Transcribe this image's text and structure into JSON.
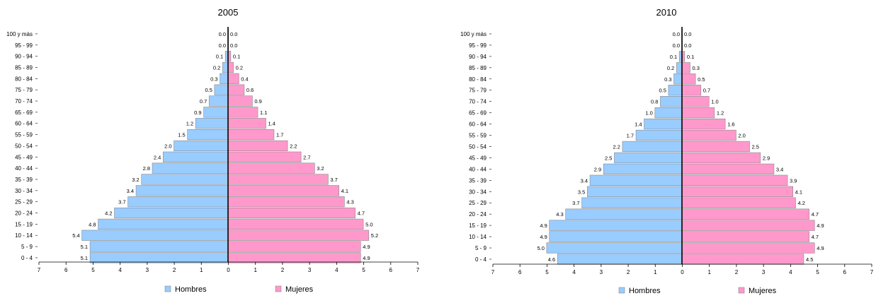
{
  "chart_data": [
    {
      "type": "bar",
      "orientation": "horizontal",
      "title": "2005",
      "categories": [
        "100 y más",
        "95 - 99",
        "90 - 94",
        "85 - 89",
        "80 - 84",
        "75 - 79",
        "70 - 74",
        "65 - 69",
        "60 - 64",
        "55 - 59",
        "50 - 54",
        "45 - 49",
        "40 - 44",
        "35 - 39",
        "30 - 34",
        "25 - 29",
        "20 - 24",
        "15 - 19",
        "10 - 14",
        "5 - 9",
        "0 - 4"
      ],
      "x_ticks": [
        "7",
        "6",
        "5",
        "4",
        "3",
        "2",
        "1",
        "0",
        "1",
        "2",
        "3",
        "4",
        "5",
        "6",
        "7"
      ],
      "xlim": [
        -7,
        7
      ],
      "grid": false,
      "legend_position": "bottom",
      "series": [
        {
          "name": "Hombres",
          "color": "#99ccff",
          "side": "left",
          "values": [
            0.0,
            0.0,
            0.1,
            0.2,
            0.3,
            0.5,
            0.7,
            0.9,
            1.2,
            1.5,
            2.0,
            2.4,
            2.8,
            3.2,
            3.4,
            3.7,
            4.2,
            4.8,
            5.4,
            5.1,
            5.1
          ],
          "labels": [
            "0.0",
            "0.0",
            "0.1",
            "0.2",
            "0.3",
            "0.5",
            "0.7",
            "0.9",
            "1.2",
            "1.5",
            "2.0",
            "2.4",
            "2.8",
            "3.2",
            "3.4",
            "3.7",
            "4.2",
            "4.8",
            "5.4",
            "5.1",
            "5.1"
          ]
        },
        {
          "name": "Mujeres",
          "color": "#ff99cc",
          "side": "right",
          "values": [
            0.0,
            0.0,
            0.1,
            0.2,
            0.4,
            0.6,
            0.9,
            1.1,
            1.4,
            1.7,
            2.2,
            2.7,
            3.2,
            3.7,
            4.1,
            4.3,
            4.7,
            5.0,
            5.2,
            4.9,
            4.9
          ],
          "labels": [
            "0.0",
            "0.0",
            "0.1",
            "0.2",
            "0.4",
            "0.6",
            "0.9",
            "1.1",
            "1.4",
            "1.7",
            "2.2",
            "2.7",
            "3.2",
            "3.7",
            "4.1",
            "4.3",
            "4.7",
            "5.0",
            "5.2",
            "4.9",
            "4.9"
          ]
        }
      ]
    },
    {
      "type": "bar",
      "orientation": "horizontal",
      "title": "2010",
      "categories": [
        "100 y más",
        "95 - 99",
        "90 - 94",
        "85 - 89",
        "80 - 84",
        "75 - 79",
        "70 - 74",
        "65 - 69",
        "60 - 64",
        "55 - 59",
        "50 - 54",
        "45 - 49",
        "40 - 44",
        "35 - 39",
        "30 - 34",
        "25 - 29",
        "20 - 24",
        "15 - 19",
        "10 - 14",
        "5 - 9",
        "0 - 4"
      ],
      "x_ticks": [
        "7",
        "6",
        "5",
        "4",
        "3",
        "2",
        "1",
        "0",
        "1",
        "2",
        "3",
        "4",
        "5",
        "6",
        "7"
      ],
      "xlim": [
        -7,
        7
      ],
      "grid": false,
      "legend_position": "bottom",
      "series": [
        {
          "name": "Hombres",
          "color": "#99ccff",
          "side": "left",
          "values": [
            0.0,
            0.0,
            0.1,
            0.2,
            0.3,
            0.5,
            0.8,
            1.0,
            1.4,
            1.7,
            2.2,
            2.5,
            2.9,
            3.4,
            3.5,
            3.7,
            4.3,
            4.9,
            4.9,
            5.0,
            4.6
          ],
          "labels": [
            "0.0",
            "0.0",
            "0.1",
            "0.2",
            "0.3",
            "0.5",
            "0.8",
            "1.0",
            "1.4",
            "1.7",
            "2.2",
            "2.5",
            "2.9",
            "3.4",
            "3.5",
            "3.7",
            "4.3",
            "4.9",
            "4.9",
            "5.0",
            "4.6"
          ]
        },
        {
          "name": "Mujeres",
          "color": "#ff99cc",
          "side": "right",
          "values": [
            0.0,
            0.0,
            0.1,
            0.3,
            0.5,
            0.7,
            1.0,
            1.2,
            1.6,
            2.0,
            2.5,
            2.9,
            3.4,
            3.9,
            4.1,
            4.2,
            4.7,
            4.9,
            4.7,
            4.9,
            4.5
          ],
          "labels": [
            "0.0",
            "0.0",
            "0.1",
            "0.3",
            "0.5",
            "0.7",
            "1.0",
            "1.2",
            "1.6",
            "2.0",
            "2.5",
            "2.9",
            "3.4",
            "3.9",
            "4.1",
            "4.2",
            "4.7",
            "4.9",
            "4.7",
            "4.9",
            "4.5"
          ]
        }
      ]
    }
  ]
}
